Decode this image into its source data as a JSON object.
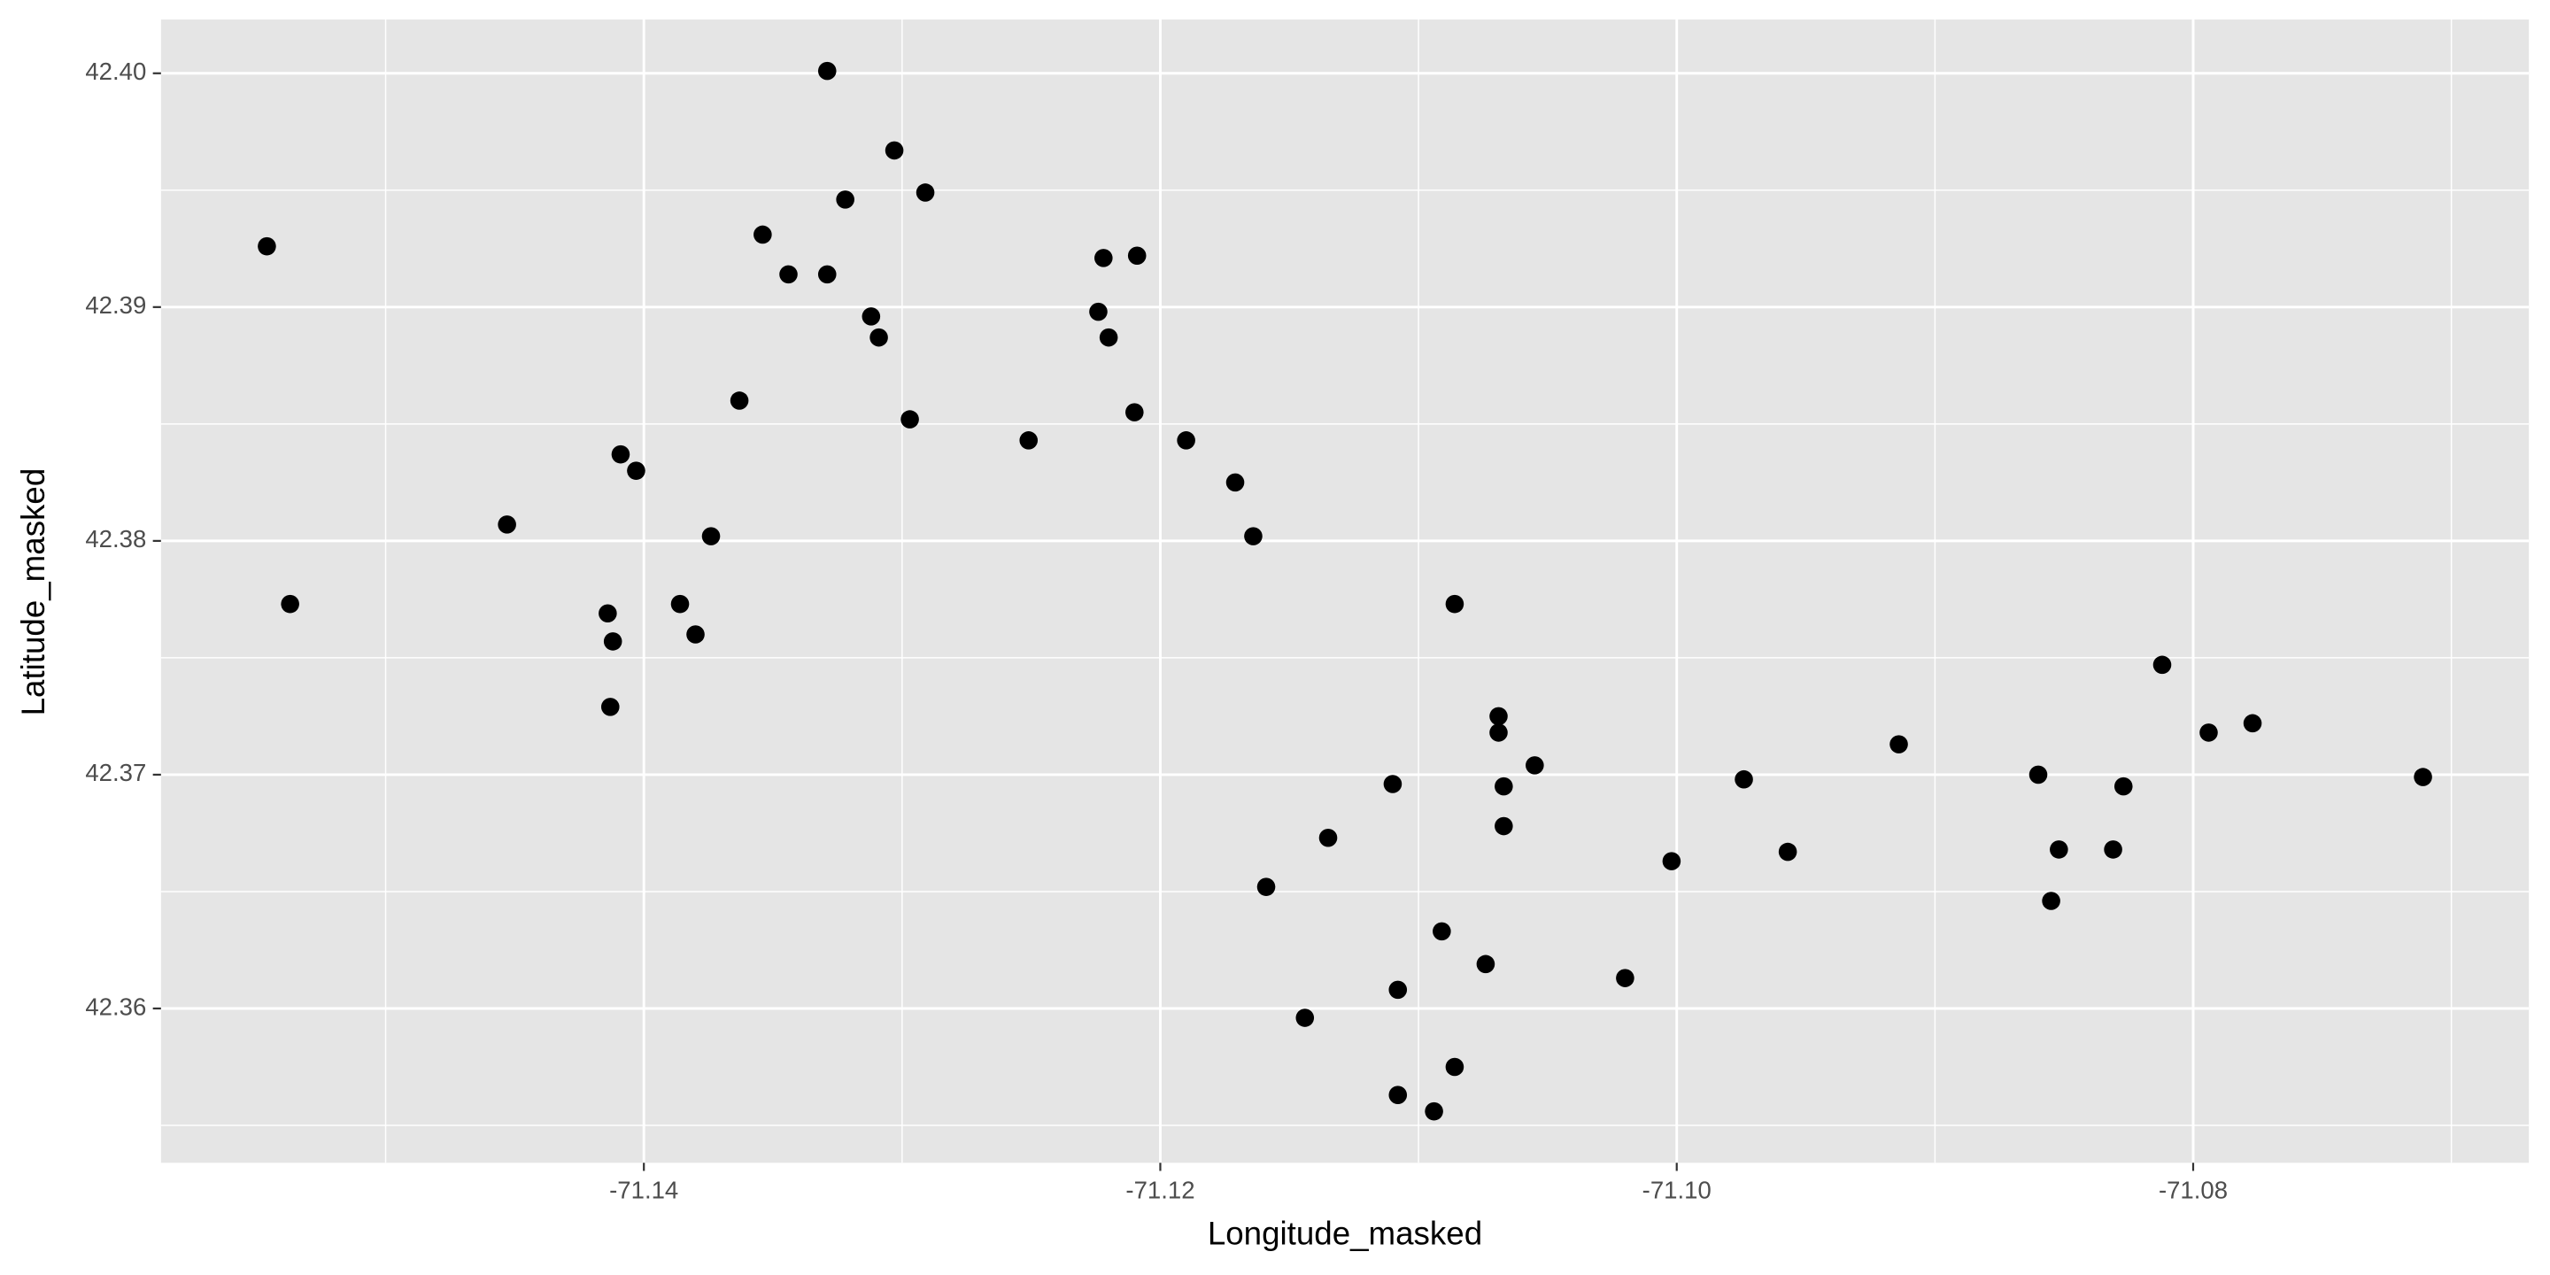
{
  "chart_data": {
    "type": "scatter",
    "x_label": "Longitude_masked",
    "y_label": "Latitude_masked",
    "color": "#000000",
    "grid": true,
    "xlim": [
      -71.1587,
      -71.067
    ],
    "ylim": [
      42.3534,
      42.4023
    ],
    "xticks": [
      -71.14,
      -71.12,
      {
        "value": -71.1,
        "label": "-71.10"
      },
      -71.08
    ],
    "yticks": [
      42.36,
      42.37,
      42.38,
      42.39,
      {
        "value": 42.4,
        "label": "42.40"
      }
    ],
    "x": [
      -71.1546,
      -71.1537,
      -71.1453,
      -71.1414,
      -71.1412,
      -71.1413,
      -71.1409,
      -71.1403,
      -71.1386,
      -71.138,
      -71.1374,
      -71.1363,
      -71.1354,
      -71.1344,
      -71.1329,
      -71.1329,
      -71.1322,
      -71.1312,
      -71.1309,
      -71.1303,
      -71.1291,
      -71.1297,
      -71.1251,
      -71.1224,
      -71.1222,
      -71.122,
      -71.1209,
      -71.121,
      -71.119,
      -71.1171,
      -71.1164,
      -71.1086,
      -71.1069,
      -71.1069,
      -71.1067,
      -71.1055,
      -71.1067,
      -71.111,
      -71.1135,
      -71.1159,
      -71.1091,
      -71.1074,
      -71.1108,
      -71.1144,
      -71.1086,
      -71.1108,
      -71.1094,
      -71.102,
      -71.1002,
      -71.0974,
      -71.0957,
      -71.0914,
      -71.086,
      -71.0852,
      -71.0855,
      -71.0831,
      -71.0827,
      -71.0812,
      -71.0794,
      -71.0777,
      -71.0711
    ],
    "values": [
      42.3926,
      42.3773,
      42.3807,
      42.3769,
      42.3757,
      42.3729,
      42.3837,
      42.383,
      42.3773,
      42.376,
      42.3802,
      42.386,
      42.3931,
      42.3914,
      42.3914,
      42.4001,
      42.3946,
      42.3896,
      42.3887,
      42.3967,
      42.3949,
      42.3852,
      42.3843,
      42.3898,
      42.3921,
      42.3887,
      42.3922,
      42.3855,
      42.3843,
      42.3825,
      42.3802,
      42.3773,
      42.3725,
      42.3718,
      42.3695,
      42.3704,
      42.3678,
      42.3696,
      42.3673,
      42.3652,
      42.3633,
      42.3619,
      42.3608,
      42.3596,
      42.3575,
      42.3563,
      42.3556,
      42.3613,
      42.3663,
      42.3698,
      42.3667,
      42.3713,
      42.37,
      42.3668,
      42.3646,
      42.3668,
      42.3695,
      42.3747,
      42.3718,
      42.3722,
      42.3699
    ]
  }
}
